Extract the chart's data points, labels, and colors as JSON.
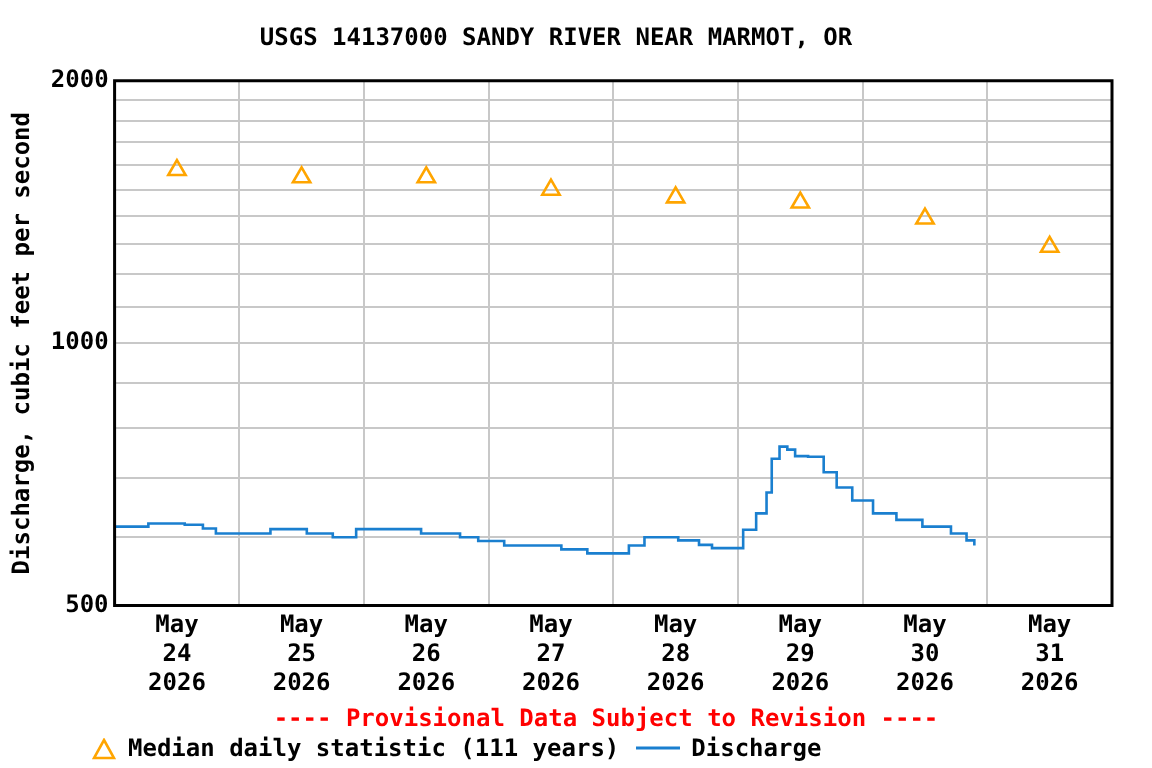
{
  "chart_data": {
    "type": "step",
    "title": "USGS 14137000 SANDY RIVER NEAR MARMOT, OR",
    "ylabel": "Discharge, cubic feet per second",
    "annotations": [
      "---- Provisional Data Subject to Revision ----"
    ],
    "log": "y",
    "grid": true,
    "legend": "bottom",
    "xlim": [
      "2026-05-24T00:00",
      "2026-06-01T00:00"
    ],
    "xticks": [
      {
        "value": "2026-05-24T12:00",
        "label": "May\n24\n2026"
      },
      {
        "value": "2026-05-25T00:00",
        "label": null
      },
      {
        "value": "2026-05-25T12:00",
        "label": "May\n25\n2026"
      },
      {
        "value": "2026-05-26T00:00",
        "label": null
      },
      {
        "value": "2026-05-26T12:00",
        "label": "May\n26\n2026"
      },
      {
        "value": "2026-05-27T00:00",
        "label": null
      },
      {
        "value": "2026-05-27T12:00",
        "label": "May\n27\n2026"
      },
      {
        "value": "2026-05-28T00:00",
        "label": null
      },
      {
        "value": "2026-05-28T12:00",
        "label": "May\n28\n2026"
      },
      {
        "value": "2026-05-29T00:00",
        "label": null
      },
      {
        "value": "2026-05-29T12:00",
        "label": "May\n29\n2026"
      },
      {
        "value": "2026-05-30T00:00",
        "label": null
      },
      {
        "value": "2026-05-30T12:00",
        "label": "May\n30\n2026"
      },
      {
        "value": "2026-05-31T00:00",
        "label": null
      },
      {
        "value": "2026-05-31T12:00",
        "label": "May\n31\n2026"
      }
    ],
    "ylim": [
      500,
      2000
    ],
    "yticks": [
      500,
      {
        "value": 600,
        "label": null
      },
      {
        "value": 700,
        "label": null
      },
      {
        "value": 800,
        "label": null
      },
      {
        "value": 900,
        "label": null
      },
      1000,
      {
        "value": 1100,
        "label": null
      },
      {
        "value": 1200,
        "label": null
      },
      {
        "value": 1300,
        "label": null
      },
      {
        "value": 1400,
        "label": null
      },
      {
        "value": 1500,
        "label": null
      },
      {
        "value": 1600,
        "label": null
      },
      {
        "value": 1700,
        "label": null
      },
      {
        "value": 1800,
        "label": null
      },
      {
        "value": 1900,
        "label": null
      },
      2000
    ],
    "series": [
      {
        "name": "Median daily statistic (111 years)",
        "type": "scatter",
        "marker": "triangle",
        "color": "#ffa500",
        "x": [
          "2026-05-24T12:00",
          "2026-05-25T12:00",
          "2026-05-26T12:00",
          "2026-05-27T12:00",
          "2026-05-28T12:00",
          "2026-05-29T12:00",
          "2026-05-30T12:00",
          "2026-05-31T12:00"
        ],
        "values": [
          1580,
          1550,
          1550,
          1500,
          1470,
          1450,
          1390,
          1290
        ]
      },
      {
        "name": "Discharge",
        "marker": "none",
        "color": "#1a7fcf",
        "x": [
          "2026-05-24T00:00",
          "2026-05-24T06:30",
          "2026-05-24T13:30",
          "2026-05-24T17:00",
          "2026-05-24T19:30",
          "2026-05-25T06:00",
          "2026-05-25T13:00",
          "2026-05-25T18:00",
          "2026-05-25T22:30",
          "2026-05-26T11:00",
          "2026-05-26T18:30",
          "2026-05-26T22:00",
          "2026-05-27T03:00",
          "2026-05-27T14:00",
          "2026-05-27T19:00",
          "2026-05-28T00:30",
          "2026-05-28T03:00",
          "2026-05-28T06:00",
          "2026-05-28T12:30",
          "2026-05-28T16:30",
          "2026-05-28T19:00",
          "2026-05-28T23:00",
          "2026-05-29T01:00",
          "2026-05-29T03:30",
          "2026-05-29T05:30",
          "2026-05-29T06:30",
          "2026-05-29T08:00",
          "2026-05-29T09:30",
          "2026-05-29T11:00",
          "2026-05-29T13:30",
          "2026-05-29T16:30",
          "2026-05-29T19:00",
          "2026-05-29T22:00",
          "2026-05-30T02:00",
          "2026-05-30T06:30",
          "2026-05-30T11:30",
          "2026-05-30T17:00",
          "2026-05-30T20:00",
          "2026-05-30T21:30"
        ],
        "values": [
          616,
          621,
          619,
          613,
          605,
          612,
          605,
          599,
          612,
          605,
          599,
          593,
          586,
          580,
          574,
          574,
          586,
          599,
          594,
          587,
          582,
          582,
          611,
          638,
          674,
          737,
          761,
          755,
          742,
          741,
          711,
          683,
          660,
          638,
          627,
          616,
          605,
          594,
          586
        ]
      }
    ]
  }
}
